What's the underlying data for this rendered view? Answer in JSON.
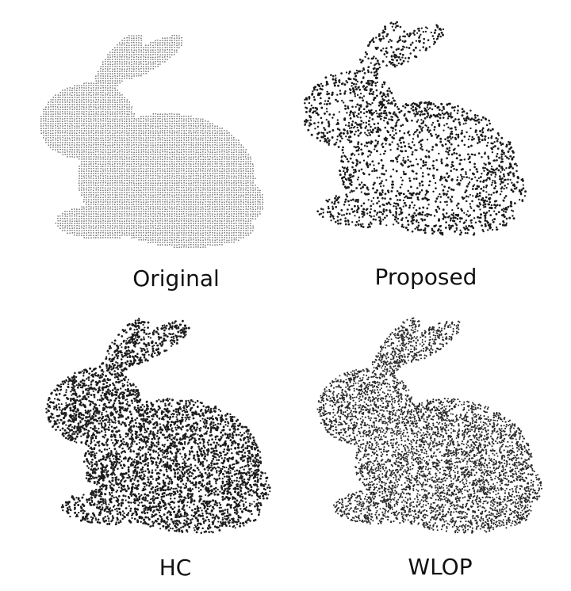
{
  "figure": {
    "panels": [
      {
        "label": "Original",
        "style": "dense-grid",
        "color": "#6e6e6e"
      },
      {
        "label": "Proposed",
        "style": "sparse-structured",
        "color": "#1a1a1a"
      },
      {
        "label": "HC",
        "style": "noisy-clustered",
        "color": "#1c1c1c"
      },
      {
        "label": "WLOP",
        "style": "uniform-dense",
        "color": "#2a2a2a"
      }
    ]
  }
}
